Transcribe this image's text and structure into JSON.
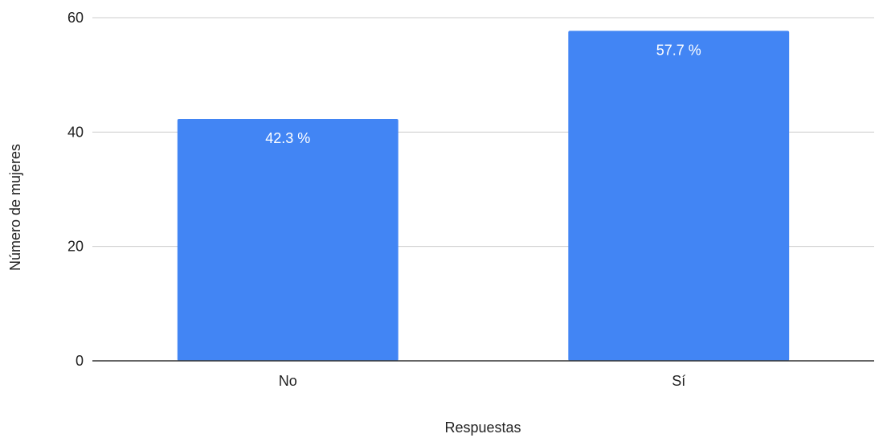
{
  "chart_data": {
    "type": "bar",
    "title": "",
    "xlabel": "Respuestas",
    "ylabel": "Número de mujeres",
    "categories": [
      "No",
      "Sí"
    ],
    "values": [
      42.3,
      57.7
    ],
    "data_labels": [
      "42.3 %",
      "57.7 %"
    ],
    "ylim": [
      0,
      60
    ],
    "yticks": [
      0,
      20,
      40,
      60
    ],
    "ytick_labels": [
      "0",
      "20",
      "40",
      "60"
    ],
    "grid": true,
    "legend": "none",
    "colors": {
      "bar": "#4285F4",
      "grid": "#cccccc",
      "axis": "#333333"
    }
  }
}
